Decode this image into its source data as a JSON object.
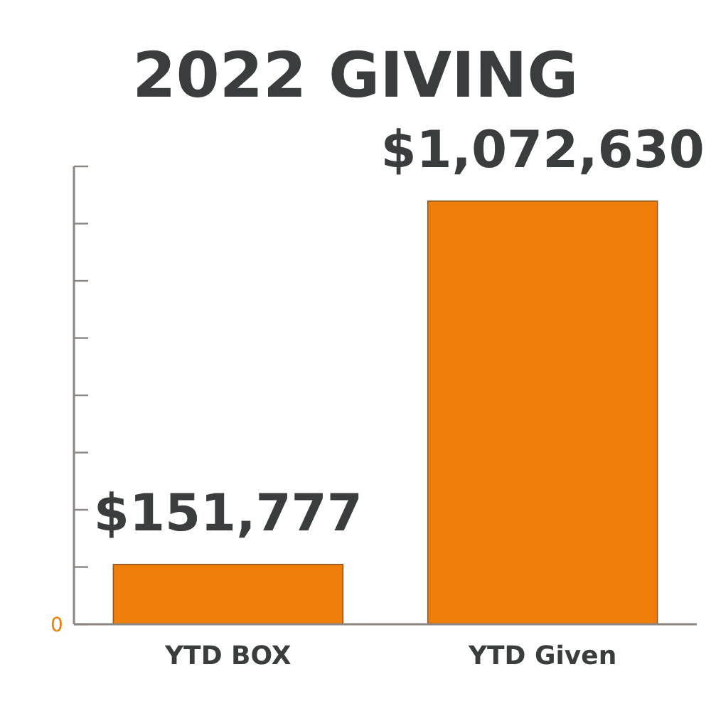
{
  "chart_data": {
    "type": "bar",
    "title": "2022 GIVING",
    "categories": [
      "YTD BOX",
      "YTD Given"
    ],
    "values": [
      151777,
      1072630
    ],
    "color": "#ef7f0a",
    "value_labels": [
      "$151,777",
      "$1,072,630"
    ],
    "annotations": [
      "0"
    ]
  }
}
